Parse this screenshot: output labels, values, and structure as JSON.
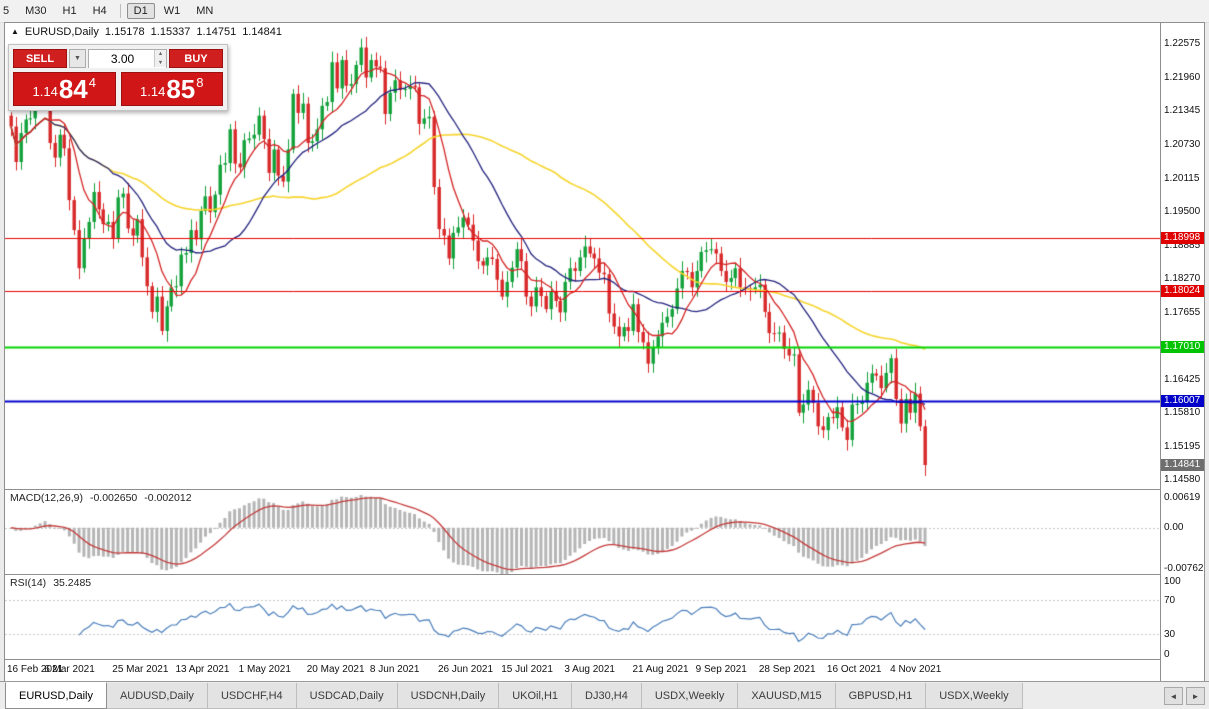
{
  "toolbar": {
    "timeframes": [
      "5",
      "M30",
      "H1",
      "H4",
      "D1",
      "W1",
      "MN"
    ],
    "active": "D1"
  },
  "chart_header": {
    "expand_icon": "▲",
    "symbol": "EURUSD,Daily",
    "open": "1.15178",
    "high": "1.15337",
    "low": "1.14751",
    "close": "1.14841"
  },
  "trade_panel": {
    "sell_label": "SELL",
    "buy_label": "BUY",
    "volume": "3.00",
    "dropdown_icon": "▼",
    "spin_up_icon": "▲",
    "spin_down_icon": "▼",
    "sell_price": {
      "base": "1.14",
      "pips": "84",
      "point": "4"
    },
    "buy_price": {
      "base": "1.14",
      "pips": "85",
      "point": "8"
    }
  },
  "price_axis": {
    "labels": [
      "1.22575",
      "1.21960",
      "1.21345",
      "1.20730",
      "1.20115",
      "1.19500",
      "1.18885",
      "1.18270",
      "1.17655",
      "1.17040",
      "1.16425",
      "1.15810",
      "1.15195",
      "1.14580"
    ],
    "badges": [
      {
        "value": "1.18998",
        "color": "#e00000"
      },
      {
        "value": "1.18024",
        "color": "#e00000"
      },
      {
        "value": "1.17010",
        "color": "#00c400"
      },
      {
        "value": "1.16007",
        "color": "#0000c8"
      },
      {
        "value": "1.14841",
        "color": "#6e6e6e"
      }
    ]
  },
  "macd_panel": {
    "label": "MACD(12,26,9)",
    "main_value": "-0.002650",
    "signal_value": "-0.002012",
    "axis_top": "0.00619",
    "axis_zero": "0.00",
    "axis_bottom": "-0.00762"
  },
  "rsi_panel": {
    "label": "RSI(14)",
    "value": "35.2485",
    "axis": [
      "100",
      "70",
      "30",
      "0"
    ]
  },
  "date_axis": {
    "labels": [
      "16 Feb 2021",
      "6 Mar 2021",
      "25 Mar 2021",
      "13 Apr 2021",
      "1 May 2021",
      "20 May 2021",
      "8 Jun 2021",
      "26 Jun 2021",
      "15 Jul 2021",
      "3 Aug 2021",
      "21 Aug 2021",
      "9 Sep 2021",
      "28 Sep 2021",
      "16 Oct 2021",
      "4 Nov 2021"
    ]
  },
  "tab_bar": {
    "tabs": [
      {
        "label": "EURUSD,Daily",
        "active": true
      },
      {
        "label": "AUDUSD,Daily",
        "active": false
      },
      {
        "label": "USDCHF,H4",
        "active": false
      },
      {
        "label": "USDCAD,Daily",
        "active": false
      },
      {
        "label": "USDCNH,Daily",
        "active": false
      },
      {
        "label": "UKOil,H1",
        "active": false
      },
      {
        "label": "DJ30,H4",
        "active": false
      },
      {
        "label": "USDX,Weekly",
        "active": false
      },
      {
        "label": "XAUUSD,M15",
        "active": false
      },
      {
        "label": "GBPUSD,H1",
        "active": false
      },
      {
        "label": "USDX,Weekly",
        "active": false
      }
    ],
    "scroll_left": "◄",
    "scroll_right": "►"
  },
  "chart_data": {
    "type": "candlestick",
    "title": "EURUSD,Daily",
    "price_range": {
      "min": 1.144,
      "max": 1.2295
    },
    "up_color": "#12a13a",
    "down_color": "#d8282a",
    "closes": [
      1.2105,
      1.204,
      1.2093,
      1.2118,
      1.212,
      1.2155,
      1.216,
      1.217,
      1.2075,
      1.2048,
      1.209,
      1.2065,
      1.197,
      1.1915,
      1.1845,
      1.19,
      1.193,
      1.1985,
      1.1953,
      1.1926,
      1.193,
      1.19,
      1.1975,
      1.1982,
      1.1918,
      1.1905,
      1.1935,
      1.1865,
      1.1812,
      1.1765,
      1.1793,
      1.173,
      1.1775,
      1.181,
      1.1812,
      1.187,
      1.1873,
      1.1915,
      1.1898,
      1.195,
      1.1977,
      1.1948,
      1.198,
      1.2035,
      1.2038,
      1.21,
      1.2037,
      1.203,
      1.208,
      1.2083,
      1.209,
      1.2125,
      1.2082,
      1.202,
      1.2063,
      1.2015,
      1.2004,
      1.2063,
      1.2165,
      1.213,
      1.2147,
      1.2075,
      1.2078,
      1.21,
      1.2143,
      1.215,
      1.2223,
      1.2175,
      1.2227,
      1.218,
      1.2183,
      1.2218,
      1.225,
      1.2195,
      1.2227,
      1.2215,
      1.2212,
      1.2128,
      1.2167,
      1.219,
      1.2172,
      1.2174,
      1.218,
      1.2177,
      1.211,
      1.212,
      1.2123,
      1.1994,
      1.1917,
      1.1905,
      1.1863,
      1.191,
      1.192,
      1.1938,
      1.1925,
      1.1896,
      1.1858,
      1.185,
      1.1865,
      1.1862,
      1.1824,
      1.1793,
      1.182,
      1.1846,
      1.188,
      1.1858,
      1.1793,
      1.1775,
      1.181,
      1.1794,
      1.177,
      1.1803,
      1.1785,
      1.1764,
      1.182,
      1.1845,
      1.184,
      1.1865,
      1.1885,
      1.1872,
      1.1863,
      1.1837,
      1.1834,
      1.1762,
      1.1738,
      1.172,
      1.1737,
      1.173,
      1.1779,
      1.1728,
      1.1709,
      1.167,
      1.17,
      1.172,
      1.1745,
      1.1756,
      1.177,
      1.1808,
      1.184,
      1.1838,
      1.181,
      1.184,
      1.1875,
      1.1878,
      1.188,
      1.1872,
      1.184,
      1.182,
      1.1827,
      1.1845,
      1.181,
      1.1808,
      1.1805,
      1.181,
      1.1815,
      1.1765,
      1.1726,
      1.1725,
      1.1727,
      1.1697,
      1.1685,
      1.1687,
      1.158,
      1.1595,
      1.1622,
      1.1598,
      1.1555,
      1.1548,
      1.1572,
      1.157,
      1.159,
      1.1553,
      1.153,
      1.1595,
      1.1596,
      1.16,
      1.1635,
      1.1652,
      1.1648,
      1.1625,
      1.1653,
      1.168,
      1.1605,
      1.156,
      1.1605,
      1.158,
      1.1615,
      1.1555,
      1.1484
    ],
    "moving_averages": [
      {
        "period": 55,
        "color": "#f6d42c",
        "width": 1.6
      },
      {
        "period": 21,
        "color": "#23237e",
        "width": 1.3
      },
      {
        "period": 8,
        "color": "#d42424",
        "width": 1.3
      }
    ],
    "horizontal_lines": [
      {
        "price": 1.18998,
        "color": "#e80000",
        "width": 1
      },
      {
        "price": 1.18024,
        "color": "#e80000",
        "width": 1
      },
      {
        "price": 1.1701,
        "color": "#00d400",
        "width": 2
      },
      {
        "price": 1.16007,
        "color": "#0000cd",
        "width": 2
      }
    ],
    "current_price": 1.14841,
    "macd": {
      "fast": 12,
      "slow": 26,
      "signal": 9,
      "range": {
        "max": 0.0062,
        "min": -0.0076
      },
      "hist_color": "#b5b5b5",
      "signal_color": "#c43b3b"
    },
    "rsi": {
      "period": 14,
      "color": "#4a7ebb",
      "levels": [
        70,
        30
      ]
    }
  }
}
